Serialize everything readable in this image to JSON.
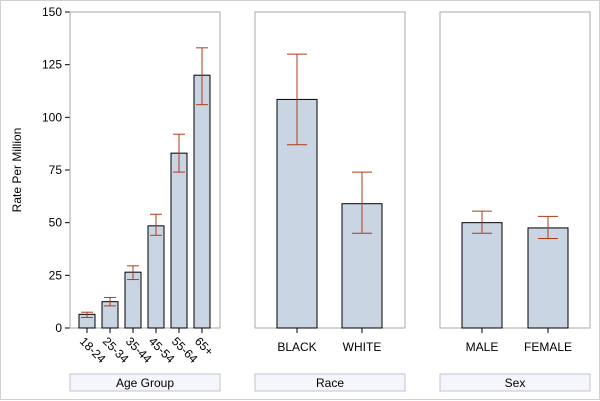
{
  "chart_data": {
    "type": "bar",
    "ylabel": "Rate Per Million",
    "ylim": [
      0,
      150
    ],
    "yticks": [
      "0",
      "25",
      "50",
      "75",
      "100",
      "125",
      "150"
    ],
    "style": {
      "bar_fill": "#cad5e4",
      "bar_stroke": "#000000",
      "error_color": "#b03a1a",
      "panel_border": "#a9a9a9",
      "label_box_fill": "#f4f6fb",
      "label_box_stroke": "#c0c4d0"
    },
    "panels": [
      {
        "title": "Age Group",
        "categories": [
          "18-24",
          "25-34",
          "35-44",
          "45-54",
          "55-64",
          "65+"
        ],
        "values": [
          6.5,
          12.5,
          26.5,
          48.5,
          83,
          120
        ],
        "lower": [
          5,
          10.5,
          23,
          44,
          74,
          106
        ],
        "upper": [
          7.5,
          14.5,
          29.5,
          54,
          92,
          133
        ]
      },
      {
        "title": "Race",
        "categories": [
          "BLACK",
          "WHITE"
        ],
        "values": [
          108.5,
          59
        ],
        "lower": [
          87,
          45
        ],
        "upper": [
          130,
          74
        ]
      },
      {
        "title": "Sex",
        "categories": [
          "MALE",
          "FEMALE"
        ],
        "values": [
          50,
          47.5
        ],
        "lower": [
          45,
          42.5
        ],
        "upper": [
          55.5,
          53
        ]
      }
    ]
  }
}
